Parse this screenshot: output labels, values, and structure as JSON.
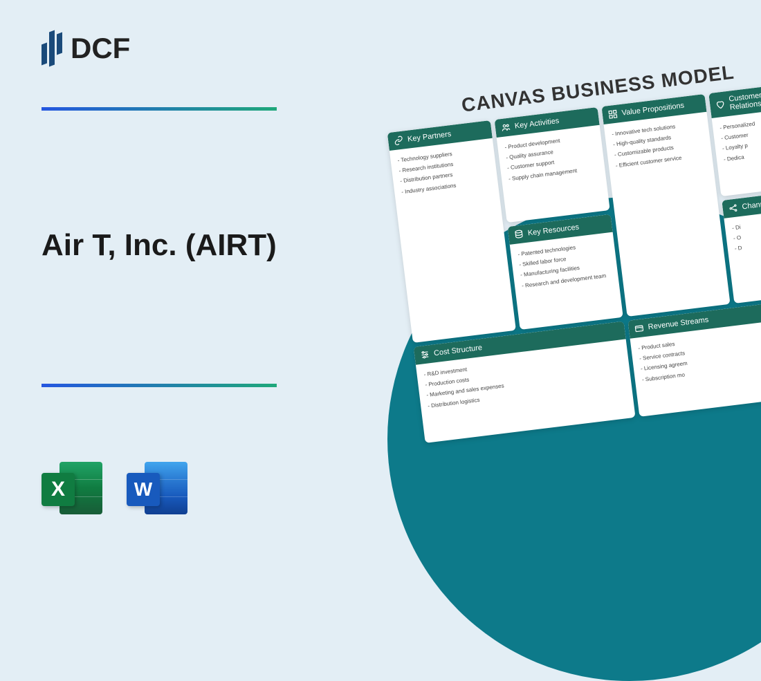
{
  "brand": {
    "name": "DCF"
  },
  "title": "Air T, Inc. (AIRT)",
  "colors": {
    "background": "#e3eef5",
    "divider_gradient": [
      "#2456e0",
      "#1fa87a"
    ],
    "teal_circle": "#0d7a8a",
    "card_header": "#1d6b5c",
    "excel": "#107c41",
    "word": "#185abd"
  },
  "canvas": {
    "title": "CANVAS BUSINESS MODEL",
    "blocks": {
      "partners": {
        "label": "Key Partners",
        "items": [
          "Technology suppliers",
          "Research institutions",
          "Distribution partners",
          "Industry associations"
        ]
      },
      "activities": {
        "label": "Key Activities",
        "items": [
          "Product development",
          "Quality assurance",
          "Customer support",
          "Supply chain management"
        ]
      },
      "resources": {
        "label": "Key Resources",
        "items": [
          "Patented technologies",
          "Skilled labor force",
          "Manufacturing facilities",
          "Research and development team"
        ]
      },
      "value": {
        "label": "Value Propositions",
        "items": [
          "Innovative tech solutions",
          "High-quality standards",
          "Customizable products",
          "Efficient customer service"
        ]
      },
      "relationships": {
        "label": "Customer Relationships",
        "items": [
          "Personalized",
          "Customer",
          "Loyalty p",
          "Dedica"
        ]
      },
      "channels": {
        "label": "Channels",
        "items": [
          "Di",
          "O",
          "D"
        ]
      },
      "cost": {
        "label": "Cost Structure",
        "items": [
          "R&D investment",
          "Production costs",
          "Marketing and sales expenses",
          "Distribution logistics"
        ]
      },
      "revenue": {
        "label": "Revenue Streams",
        "items": [
          "Product sales",
          "Service contracts",
          "Licensing agreem",
          "Subscription mo"
        ]
      }
    }
  },
  "file_icons": {
    "excel": "X",
    "word": "W"
  }
}
